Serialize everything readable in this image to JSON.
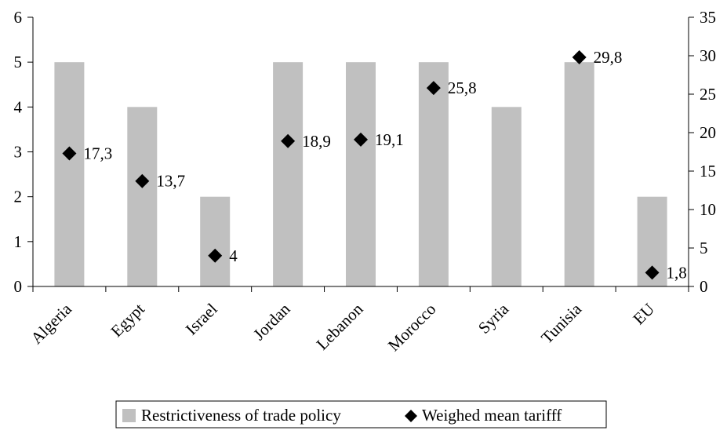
{
  "chart_data": {
    "type": "bar",
    "categories": [
      "Algeria",
      "Egypt",
      "Israel",
      "Jordan",
      "Lebanon",
      "Morocco",
      "Syria",
      "Tunisia",
      "EU"
    ],
    "series": [
      {
        "name": "Restrictiveness of trade policy",
        "type": "bar",
        "axis": "left",
        "color": "#c0c0c0",
        "values": [
          5,
          4,
          2,
          5,
          5,
          5,
          4,
          5,
          2
        ]
      },
      {
        "name": "Weighed mean tarifff",
        "type": "marker",
        "marker": "diamond",
        "axis": "right",
        "color": "#000000",
        "values": [
          17.3,
          13.7,
          4,
          18.9,
          19.1,
          25.8,
          null,
          29.8,
          1.8
        ],
        "data_labels": [
          "17,3",
          "13,7",
          "4",
          "18,9",
          "19,1",
          "25,8",
          "",
          "29,8",
          "1,8"
        ]
      }
    ],
    "left_axis": {
      "ylim": [
        0,
        6
      ],
      "ticks": [
        "0",
        "1",
        "2",
        "3",
        "4",
        "5",
        "6"
      ]
    },
    "right_axis": {
      "ylim": [
        0,
        35
      ],
      "ticks": [
        "0",
        "5",
        "10",
        "15",
        "20",
        "25",
        "30",
        "35"
      ]
    },
    "grid": false,
    "legend_position": "bottom"
  }
}
